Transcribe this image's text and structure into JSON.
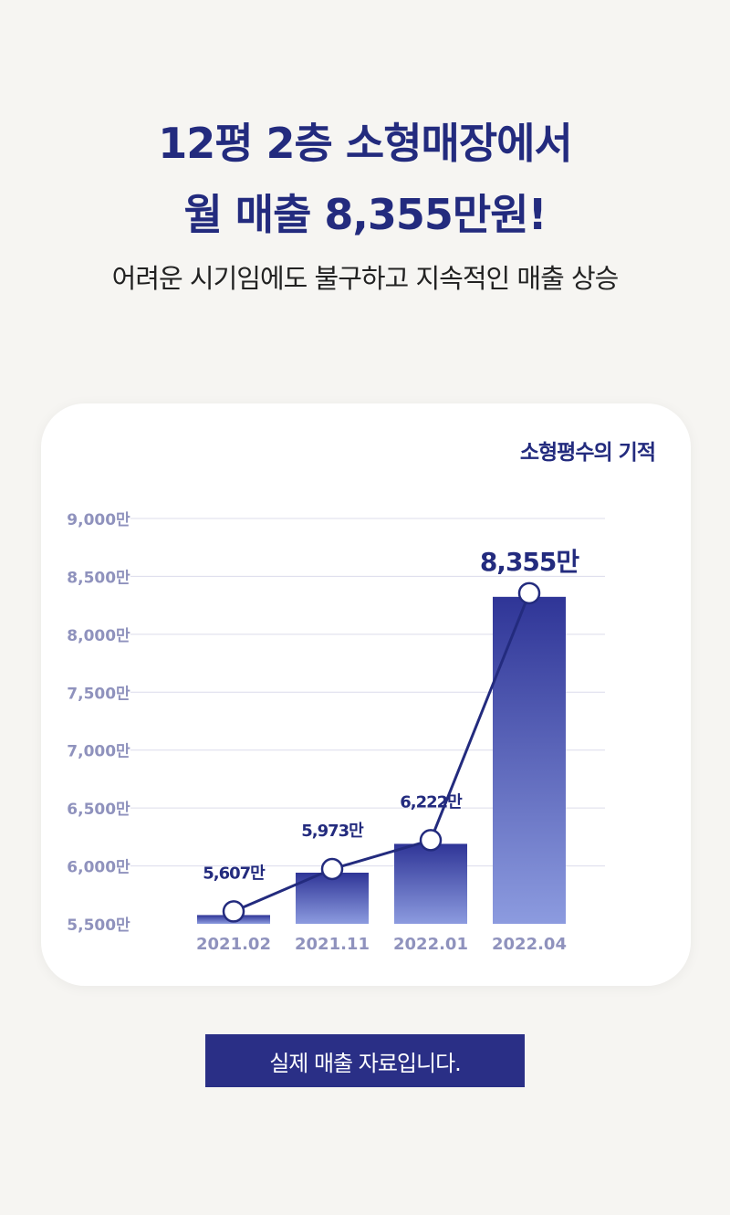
{
  "headline": {
    "line1": "12평 2층 소형매장에서",
    "line2": "월 매출 8,355만원!"
  },
  "subtitle": "어려운 시기임에도 불구하고 지속적인 매출 상승",
  "chart_title": "소형평수의 기적",
  "note_label": "실제 매출 자료입니다.",
  "colors": {
    "accent": "#232b7e",
    "bar_top": "#2f3597",
    "bar_bottom": "#8c9bdf",
    "tick_label": "#8f92bd",
    "grid": "#dcdceb",
    "background": "#f6f5f2"
  },
  "chart_data": {
    "type": "bar",
    "title": "소형평수의 기적",
    "categories": [
      "2021.02",
      "2021.11",
      "2022.01",
      "2022.04"
    ],
    "values": [
      5607,
      5973,
      6222,
      8355
    ],
    "value_labels": [
      "5,607만",
      "5,973만",
      "6,222만",
      "8,355만"
    ],
    "yticks": [
      5500,
      6000,
      6500,
      7000,
      7500,
      8000,
      8500,
      9000
    ],
    "ytick_labels": [
      "5,500만",
      "6,000만",
      "6,500만",
      "7,000만",
      "7,500만",
      "8,000만",
      "8,500만",
      "9,000만"
    ],
    "ylim": [
      5500,
      9000
    ],
    "grid": true,
    "overlay_line": true
  }
}
